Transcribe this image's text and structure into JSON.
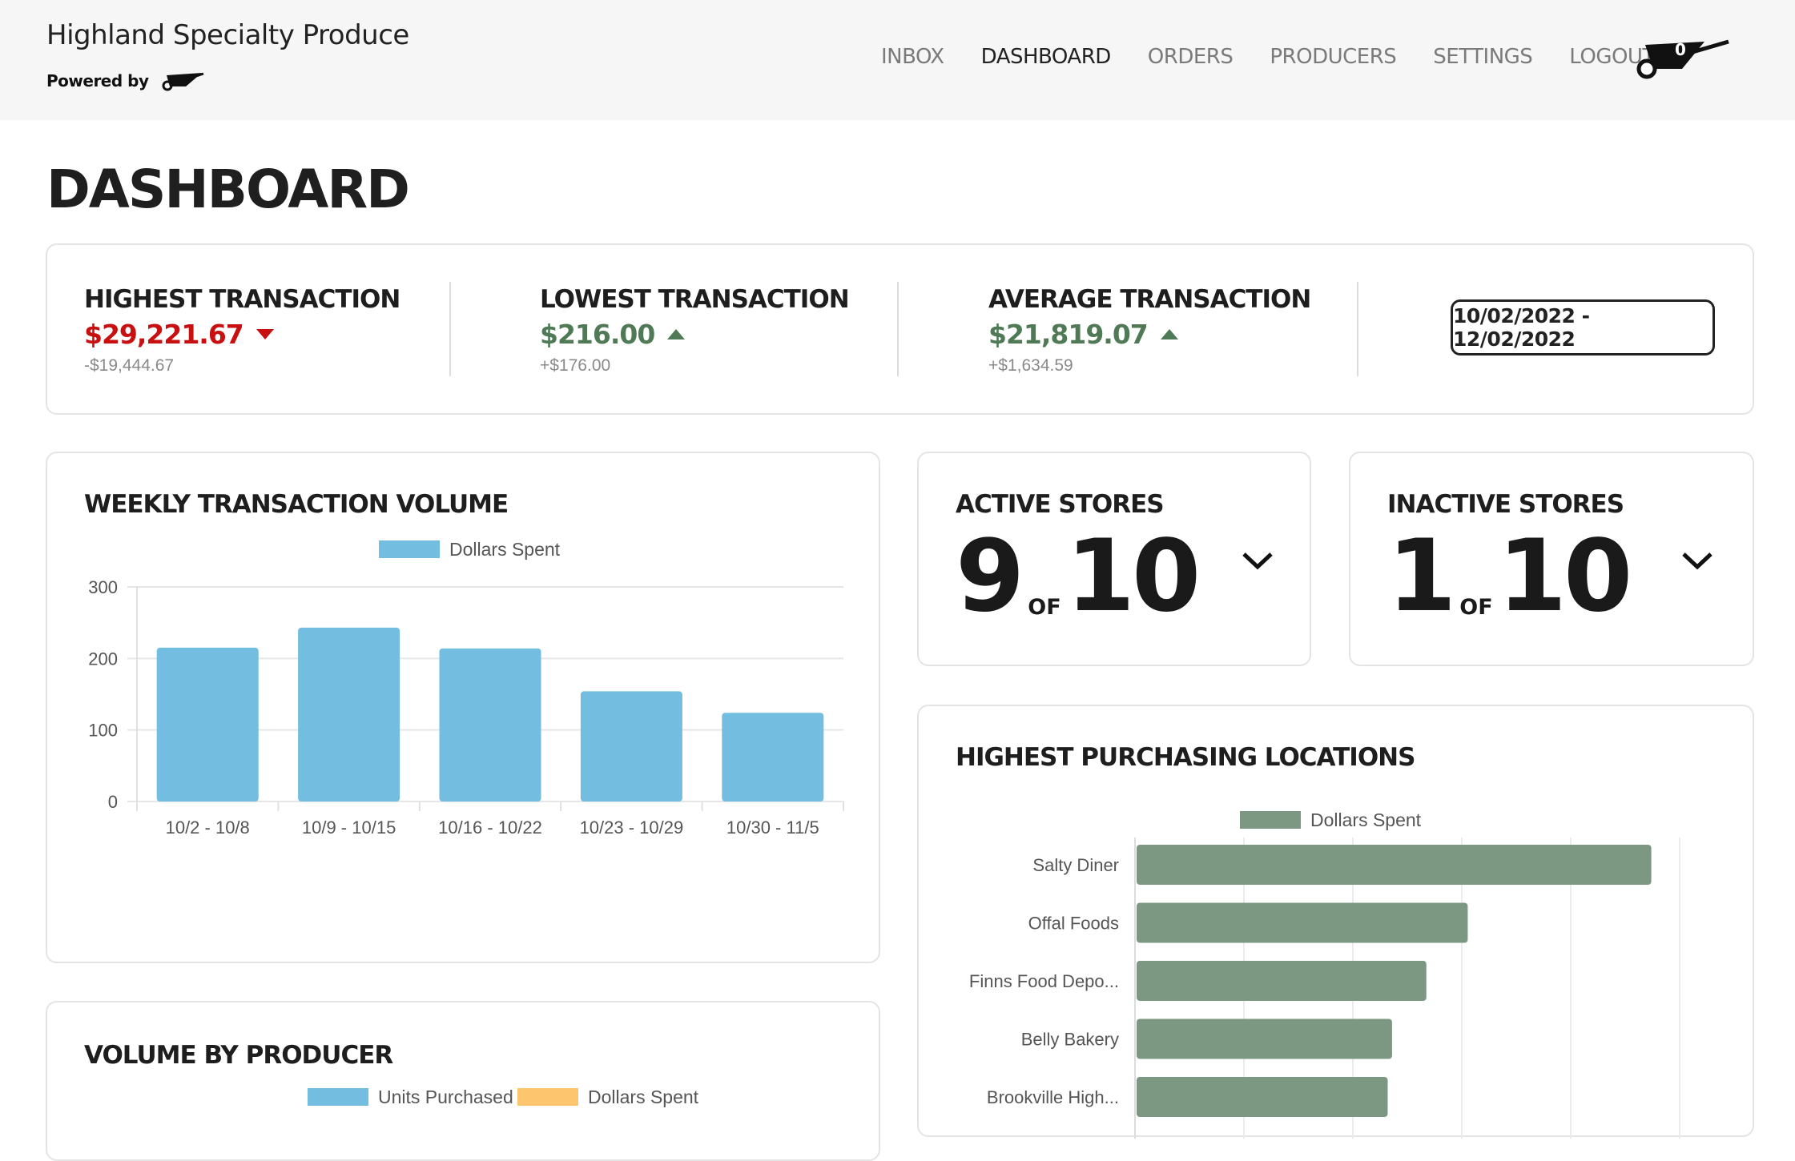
{
  "header": {
    "brand": "Highland Specialty Produce",
    "powered_by": "Powered by",
    "nav": [
      "INBOX",
      "DASHBOARD",
      "ORDERS",
      "PRODUCERS",
      "SETTINGS",
      "LOGOUT"
    ],
    "active_nav": "DASHBOARD",
    "cart_count": "0",
    "cart_icon": "wheelbarrow-icon"
  },
  "page_title": "DASHBOARD",
  "summary": {
    "highest": {
      "label": "HIGHEST TRANSACTION",
      "value": "$29,221.67",
      "change": "-$19,444.67",
      "trend": "down",
      "color": "#c81010"
    },
    "lowest": {
      "label": "LOWEST TRANSACTION",
      "value": "$216.00",
      "change": "+$176.00",
      "trend": "up",
      "color": "#4f7a55"
    },
    "average": {
      "label": "AVERAGE TRANSACTION",
      "value": "$21,819.07",
      "change": "+$1,634.59",
      "trend": "up",
      "color": "#4f7a55"
    },
    "date_range": "10/02/2022 - 12/02/2022"
  },
  "active_stores": {
    "title": "ACTIVE STORES",
    "count": "9",
    "of": "OF",
    "total": "10"
  },
  "inactive_stores": {
    "title": "INACTIVE STORES",
    "count": "1",
    "of": "OF",
    "total": "10"
  },
  "chart_data": [
    {
      "type": "bar",
      "title": "WEEKLY TRANSACTION VOLUME",
      "orientation": "vertical",
      "categories": [
        "10/2 - 10/8",
        "10/9 - 10/15",
        "10/16 - 10/22",
        "10/23 - 10/29",
        "10/30 - 11/5"
      ],
      "series": [
        {
          "name": "Dollars Spent",
          "values": [
            215,
            243,
            214,
            154,
            124
          ],
          "color": "#72bde0"
        }
      ],
      "ylim": [
        0,
        300
      ],
      "yticks": [
        0,
        100,
        200,
        300
      ],
      "legend": "top-center",
      "grid": true
    },
    {
      "type": "bar",
      "title": "HIGHEST PURCHASING LOCATIONS",
      "orientation": "horizontal",
      "categories": [
        "Salty Diner",
        "Offal Foods",
        "Finns Food Depo...",
        "Belly Bakery",
        "Brookville High..."
      ],
      "series": [
        {
          "name": "Dollars Spent",
          "values": [
            945,
            608,
            532,
            469,
            461
          ],
          "color": "#7d9882"
        }
      ],
      "xlim": [
        0,
        1000
      ],
      "legend": "top-center",
      "grid": true
    },
    {
      "type": "bar",
      "title": "VOLUME BY PRODUCER",
      "series": [
        {
          "name": "Units Purchased",
          "values": [],
          "color": "#72bde0"
        },
        {
          "name": "Dollars Spent",
          "values": [],
          "color": "#fcc56e"
        }
      ],
      "legend": "top-center"
    }
  ]
}
